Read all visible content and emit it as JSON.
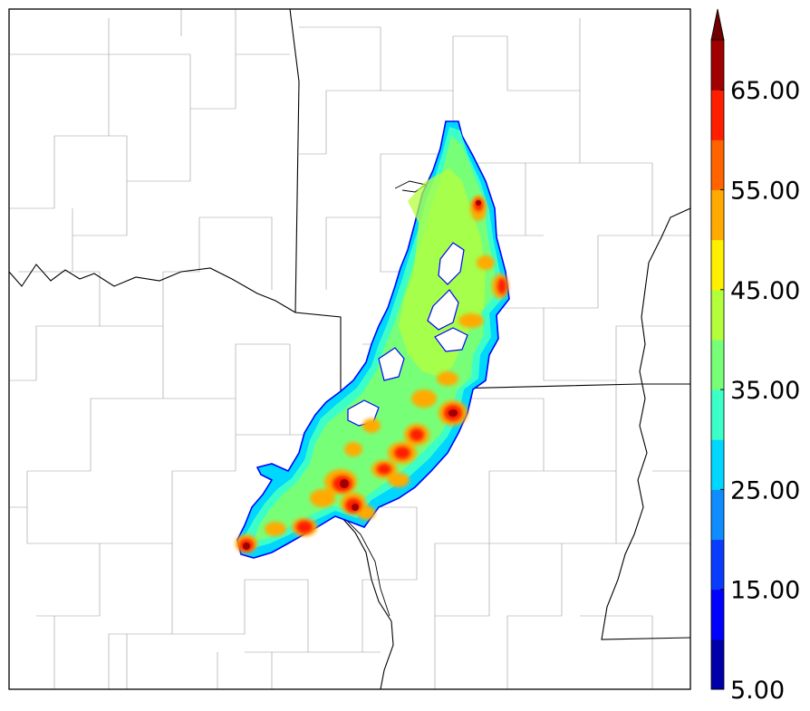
{
  "colorbar": {
    "ticks": [
      "5.00",
      "15.00",
      "25.00",
      "35.00",
      "45.00",
      "55.00",
      "65.00"
    ],
    "tick_values": [
      5,
      15,
      25,
      35,
      45,
      55,
      65
    ],
    "min": 5,
    "max": 70,
    "extend": "max",
    "colors": [
      "#0000a8",
      "#0000ff",
      "#0a3cff",
      "#0f8cff",
      "#00d7ff",
      "#3cffc8",
      "#78ff78",
      "#b4ff3c",
      "#fff000",
      "#ffaa00",
      "#ff6400",
      "#ff1e00",
      "#a00000"
    ],
    "extend_color": "#700000"
  },
  "map": {
    "borders": "state and county",
    "field": "reflectivity swath"
  }
}
